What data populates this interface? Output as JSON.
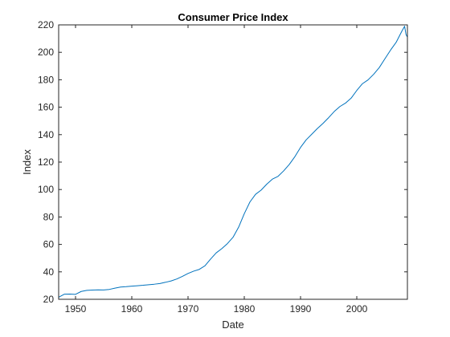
{
  "chart_data": {
    "type": "line",
    "title": "Consumer Price Index",
    "xlabel": "Date",
    "ylabel": "Index",
    "xlim": [
      1947,
      2009
    ],
    "ylim": [
      20,
      220
    ],
    "xticks": [
      1950,
      1960,
      1970,
      1980,
      1990,
      2000
    ],
    "yticks": [
      20,
      40,
      60,
      80,
      100,
      120,
      140,
      160,
      180,
      200,
      220
    ],
    "grid": false,
    "line_color": "#0072BD",
    "series": [
      {
        "x": [
          1947.0,
          1948.0,
          1949.0,
          1950.0,
          1951.0,
          1952.0,
          1953.0,
          1954.0,
          1955.0,
          1956.0,
          1957.0,
          1958.0,
          1959.0,
          1960.0,
          1961.0,
          1962.0,
          1963.0,
          1964.0,
          1965.0,
          1966.0,
          1967.0,
          1968.0,
          1969.0,
          1970.0,
          1971.0,
          1972.0,
          1973.0,
          1974.0,
          1975.0,
          1976.0,
          1977.0,
          1978.0,
          1979.0,
          1980.0,
          1981.0,
          1982.0,
          1983.0,
          1984.0,
          1985.0,
          1986.0,
          1987.0,
          1988.0,
          1989.0,
          1990.0,
          1991.0,
          1992.0,
          1993.0,
          1994.0,
          1995.0,
          1996.0,
          1997.0,
          1998.0,
          1999.0,
          2000.0,
          2001.0,
          2002.0,
          2003.0,
          2004.0,
          2005.0,
          2006.0,
          2007.0,
          2008.0,
          2008.5,
          2008.75,
          2009.0
        ],
        "y": [
          21.5,
          23.7,
          23.8,
          23.6,
          25.7,
          26.5,
          26.7,
          26.9,
          26.8,
          27.2,
          28.1,
          28.9,
          29.2,
          29.6,
          29.9,
          30.2,
          30.6,
          31.0,
          31.5,
          32.4,
          33.4,
          34.8,
          36.7,
          38.8,
          40.5,
          41.8,
          44.4,
          49.3,
          53.8,
          56.9,
          60.6,
          65.2,
          72.6,
          82.4,
          90.9,
          96.5,
          99.6,
          103.9,
          107.6,
          109.6,
          113.6,
          118.3,
          124.0,
          130.7,
          136.2,
          140.3,
          144.5,
          148.2,
          152.4,
          156.9,
          160.5,
          163.0,
          166.6,
          172.2,
          177.1,
          179.9,
          184.0,
          188.9,
          195.3,
          201.6,
          207.3,
          215.3,
          219.0,
          213.0,
          211.1
        ]
      }
    ]
  }
}
